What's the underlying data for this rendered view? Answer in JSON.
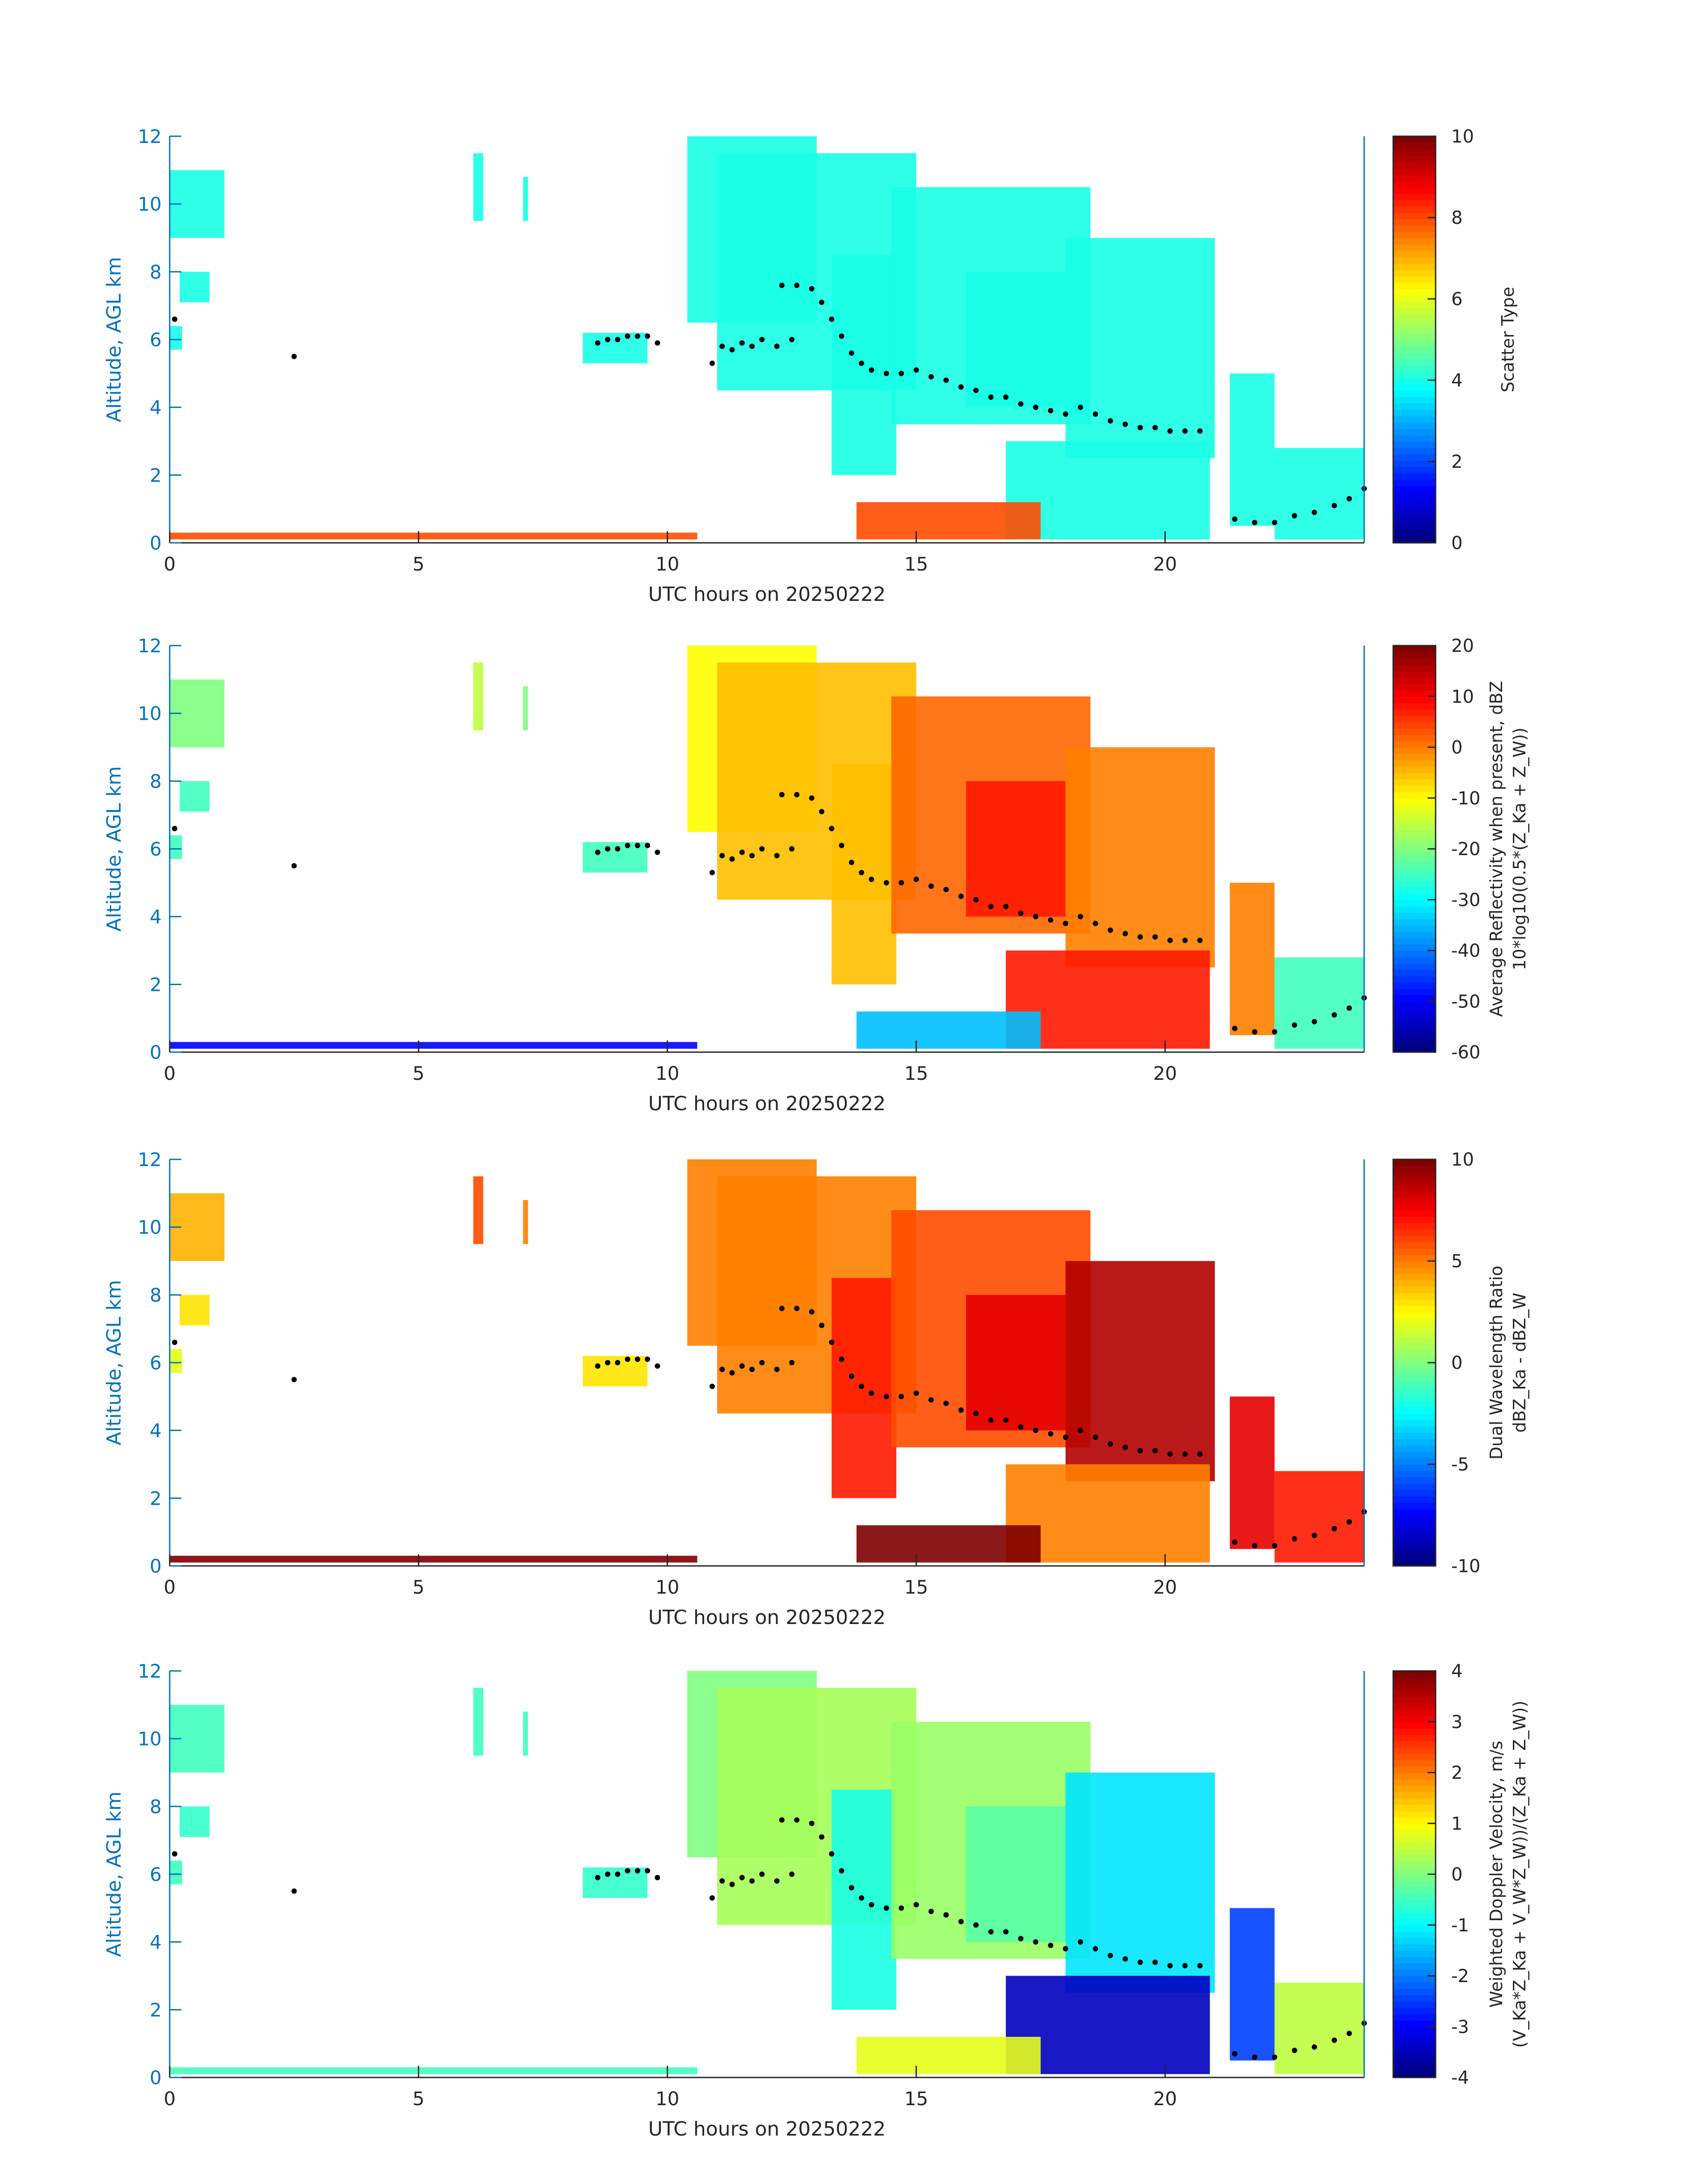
{
  "chart_data": [
    {
      "type": "heatmap",
      "ylabel": "Altitude, AGL km",
      "xlabel": "UTC hours on 20250222",
      "xlim": [
        0,
        24
      ],
      "ylim": [
        0,
        12
      ],
      "xticks": [
        "0",
        "5",
        "10",
        "15",
        "20"
      ],
      "yticks": [
        "0",
        "2",
        "4",
        "6",
        "8",
        "10",
        "12"
      ],
      "colorbar": {
        "label": [
          "Scatter Type"
        ],
        "ticks": [
          "0",
          "2",
          "4",
          "6",
          "8",
          "10"
        ],
        "min": 0,
        "max": 10
      },
      "field": "scatter_type",
      "colormap": "jet"
    },
    {
      "type": "heatmap",
      "ylabel": "Altitude, AGL km",
      "xlabel": "UTC hours on 20250222",
      "xlim": [
        0,
        24
      ],
      "ylim": [
        0,
        12
      ],
      "xticks": [
        "0",
        "5",
        "10",
        "15",
        "20"
      ],
      "yticks": [
        "0",
        "2",
        "4",
        "6",
        "8",
        "10",
        "12"
      ],
      "colorbar": {
        "label": [
          "Average Reflectivity when present, dBZ",
          "10*log10(0.5*(Z_Ka + Z_W))"
        ],
        "ticks": [
          "-60",
          "-50",
          "-40",
          "-30",
          "-20",
          "-10",
          "0",
          "10",
          "20"
        ],
        "min": -60,
        "max": 20
      },
      "field": "avg_reflectivity",
      "colormap": "jet"
    },
    {
      "type": "heatmap",
      "ylabel": "Altitude, AGL km",
      "xlabel": "UTC hours on 20250222",
      "xlim": [
        0,
        24
      ],
      "ylim": [
        0,
        12
      ],
      "xticks": [
        "0",
        "5",
        "10",
        "15",
        "20"
      ],
      "yticks": [
        "0",
        "2",
        "4",
        "6",
        "8",
        "10",
        "12"
      ],
      "colorbar": {
        "label": [
          "Dual Wavelength Ratio",
          "dBZ_Ka - dBZ_W"
        ],
        "ticks": [
          "-10",
          "-5",
          "0",
          "5",
          "10"
        ],
        "min": -10,
        "max": 10
      },
      "field": "dwr",
      "colormap": "jet"
    },
    {
      "type": "heatmap",
      "ylabel": "Altitude, AGL km",
      "xlabel": "UTC hours on 20250222",
      "xlim": [
        0,
        24
      ],
      "ylim": [
        0,
        12
      ],
      "xticks": [
        "0",
        "5",
        "10",
        "15",
        "20"
      ],
      "yticks": [
        "0",
        "2",
        "4",
        "6",
        "8",
        "10",
        "12"
      ],
      "colorbar": {
        "label": [
          "Weighted Doppler Velocity, m/s",
          "(V_Ka*Z_Ka + V_W*Z_W))/(Z_Ka + Z_W))"
        ],
        "ticks": [
          "-4",
          "-3",
          "-2",
          "-1",
          "0",
          "1",
          "2",
          "3",
          "4"
        ],
        "min": -4,
        "max": 4
      },
      "field": "weighted_velocity",
      "colormap": "jet"
    }
  ],
  "cloud_regions": [
    {
      "x0": 0.0,
      "x1": 1.1,
      "y0": 9.0,
      "y1": 11.0,
      "scatter": 4,
      "dbz": -20,
      "dwr": 4,
      "vel": -0.5
    },
    {
      "x0": 0.0,
      "x1": 0.25,
      "y0": 5.7,
      "y1": 6.4,
      "scatter": 4,
      "dbz": -25,
      "dwr": 2,
      "vel": -0.5
    },
    {
      "x0": 0.2,
      "x1": 0.8,
      "y0": 7.1,
      "y1": 8.0,
      "scatter": 4,
      "dbz": -25,
      "dwr": 3,
      "vel": -0.6
    },
    {
      "x0": 6.1,
      "x1": 6.3,
      "y0": 9.5,
      "y1": 11.5,
      "scatter": 4,
      "dbz": -15,
      "dwr": 6,
      "vel": -0.5
    },
    {
      "x0": 7.1,
      "x1": 7.2,
      "y0": 9.5,
      "y1": 10.8,
      "scatter": 4,
      "dbz": -20,
      "dwr": 5,
      "vel": -0.5
    },
    {
      "x0": 8.3,
      "x1": 9.6,
      "y0": 5.3,
      "y1": 6.2,
      "scatter": 4,
      "dbz": -25,
      "dwr": 3,
      "vel": -0.6
    },
    {
      "x0": 10.4,
      "x1": 13.0,
      "y0": 6.5,
      "y1": 12.0,
      "scatter": 4,
      "dbz": -10,
      "dwr": 5,
      "vel": 0.0
    },
    {
      "x0": 11.0,
      "x1": 15.0,
      "y0": 4.5,
      "y1": 11.5,
      "scatter": 4,
      "dbz": -5,
      "dwr": 5,
      "vel": 0.3
    },
    {
      "x0": 13.3,
      "x1": 14.6,
      "y0": 2.0,
      "y1": 8.5,
      "scatter": 4,
      "dbz": -5,
      "dwr": 7,
      "vel": -0.8
    },
    {
      "x0": 14.5,
      "x1": 18.5,
      "y0": 3.5,
      "y1": 10.5,
      "scatter": 4,
      "dbz": 2,
      "dwr": 6,
      "vel": 0.2
    },
    {
      "x0": 16.0,
      "x1": 18.0,
      "y0": 4.0,
      "y1": 8.0,
      "scatter": 4,
      "dbz": 8,
      "dwr": 8,
      "vel": -0.3
    },
    {
      "x0": 18.0,
      "x1": 21.0,
      "y0": 2.5,
      "y1": 9.0,
      "scatter": 4,
      "dbz": 0,
      "dwr": 9,
      "vel": -1.2
    },
    {
      "x0": 16.8,
      "x1": 20.9,
      "y0": 0.1,
      "y1": 3.0,
      "scatter": 4,
      "dbz": 8,
      "dwr": 5,
      "vel": -3.5
    },
    {
      "x0": 21.3,
      "x1": 22.2,
      "y0": 0.5,
      "y1": 5.0,
      "scatter": 4,
      "dbz": 0,
      "dwr": 8,
      "vel": -2.5
    },
    {
      "x0": 22.2,
      "x1": 24.0,
      "y0": 0.1,
      "y1": 2.8,
      "scatter": 4,
      "dbz": -25,
      "dwr": 7,
      "vel": 0.5
    }
  ],
  "surface_clutter": [
    {
      "x0": 0.0,
      "x1": 10.6,
      "y0": 0.1,
      "y1": 0.3,
      "scatter": 8,
      "dbz": -50,
      "dwr": 10,
      "vel": -0.5
    },
    {
      "x0": 13.8,
      "x1": 17.5,
      "y0": 0.1,
      "y1": 1.2,
      "scatter": 8,
      "dbz": -35,
      "dwr": 10,
      "vel": 0.8
    }
  ],
  "cloud_base_dots": [
    [
      0.1,
      6.6
    ],
    [
      2.5,
      5.5
    ],
    [
      8.6,
      5.9
    ],
    [
      8.8,
      6.0
    ],
    [
      9.0,
      6.0
    ],
    [
      9.2,
      6.1
    ],
    [
      9.4,
      6.1
    ],
    [
      9.6,
      6.1
    ],
    [
      9.8,
      5.9
    ],
    [
      10.9,
      5.3
    ],
    [
      11.1,
      5.8
    ],
    [
      11.3,
      5.7
    ],
    [
      11.5,
      5.9
    ],
    [
      11.7,
      5.8
    ],
    [
      11.9,
      6.0
    ],
    [
      12.2,
      5.8
    ],
    [
      12.5,
      6.0
    ],
    [
      12.3,
      7.6
    ],
    [
      12.6,
      7.6
    ],
    [
      12.9,
      7.5
    ],
    [
      13.1,
      7.1
    ],
    [
      13.3,
      6.6
    ],
    [
      13.5,
      6.1
    ],
    [
      13.7,
      5.6
    ],
    [
      13.9,
      5.3
    ],
    [
      14.1,
      5.1
    ],
    [
      14.4,
      5.0
    ],
    [
      14.7,
      5.0
    ],
    [
      15.0,
      5.1
    ],
    [
      15.3,
      4.9
    ],
    [
      15.6,
      4.8
    ],
    [
      15.9,
      4.6
    ],
    [
      16.2,
      4.5
    ],
    [
      16.5,
      4.3
    ],
    [
      16.8,
      4.3
    ],
    [
      17.1,
      4.1
    ],
    [
      17.4,
      4.0
    ],
    [
      17.7,
      3.9
    ],
    [
      18.0,
      3.8
    ],
    [
      18.3,
      4.0
    ],
    [
      18.6,
      3.8
    ],
    [
      18.9,
      3.6
    ],
    [
      19.2,
      3.5
    ],
    [
      19.5,
      3.4
    ],
    [
      19.8,
      3.4
    ],
    [
      20.1,
      3.3
    ],
    [
      20.4,
      3.3
    ],
    [
      20.7,
      3.3
    ],
    [
      21.4,
      0.7
    ],
    [
      21.8,
      0.6
    ],
    [
      22.2,
      0.6
    ],
    [
      22.6,
      0.8
    ],
    [
      23.0,
      0.9
    ],
    [
      23.4,
      1.1
    ],
    [
      23.7,
      1.3
    ],
    [
      24.0,
      1.6
    ]
  ]
}
